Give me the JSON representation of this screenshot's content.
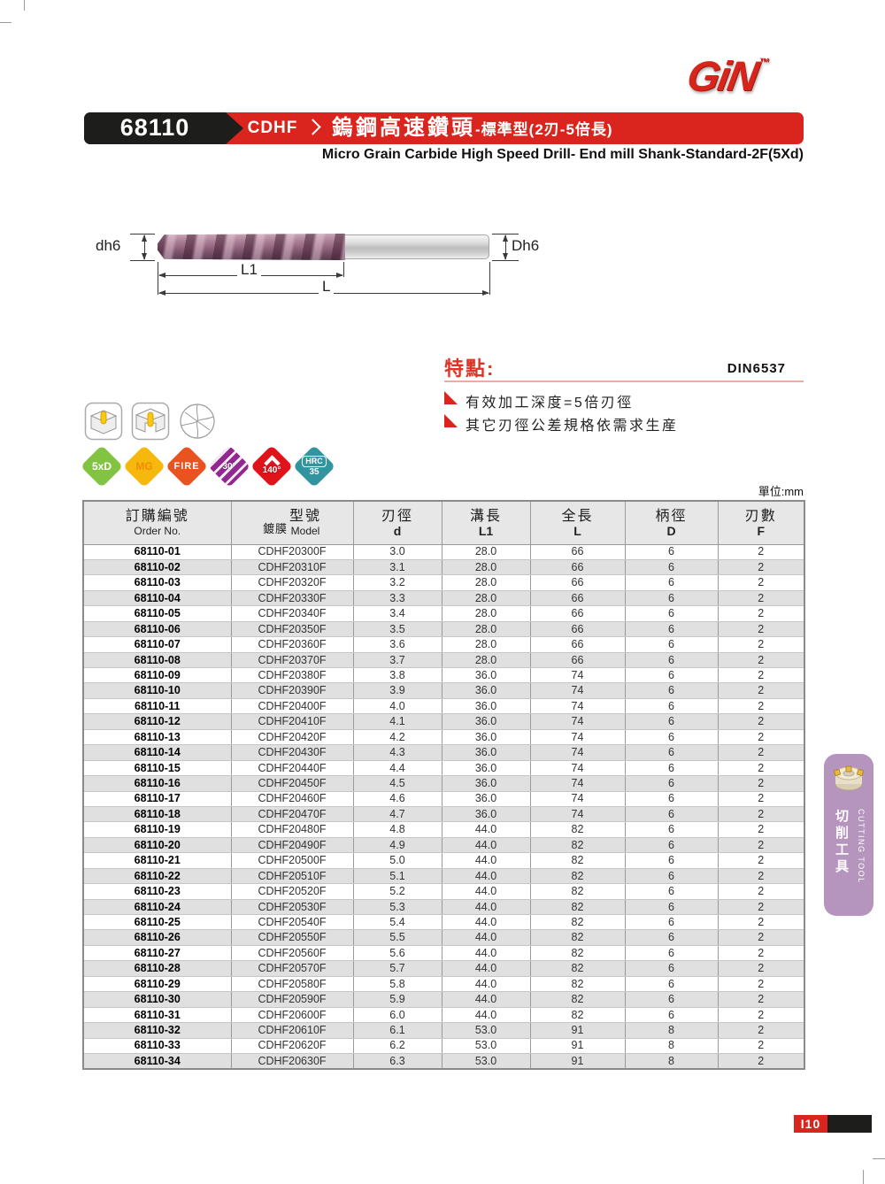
{
  "logo": {
    "text": "GiN",
    "mark": "™"
  },
  "header": {
    "code": "68110",
    "series": "CDHF",
    "title_zh_main": "鎢鋼高速鑽頭",
    "title_zh_sub": "-標準型(2刃-5倍長)",
    "subtitle_en": "Micro Grain Carbide High Speed Drill- End mill Shank-Standard-2F(5Xd)"
  },
  "diagram": {
    "label_left": "dh6",
    "label_right": "Dh6",
    "label_flute_length": "L1",
    "label_overall_length": "L"
  },
  "features": {
    "title": "特點:",
    "standard": "DIN6537",
    "items": [
      "有效加工深度=5倍刃徑",
      "其它刃徑公差規格依需求生産"
    ]
  },
  "badges": [
    {
      "label": "5xD",
      "color": "#82c341",
      "text_color": "#ffffff"
    },
    {
      "label": "MG",
      "color": "#f7b80e",
      "text_color": "#ef8e00"
    },
    {
      "label": "FIRE",
      "color": "#e8531f",
      "text_color": "#ffffff"
    },
    {
      "label": "30°",
      "color": "#92278f",
      "text_color": "#ffffff"
    },
    {
      "label": "140°",
      "color": "#e0131b",
      "text_color": "#ffffff"
    },
    {
      "label": "HRC",
      "sub": "35",
      "color": "#31949e",
      "text_color": "#ffffff"
    }
  ],
  "unit_note": "單位:mm",
  "table": {
    "headers": [
      {
        "zh": "訂購編號",
        "en": "Order No."
      },
      {
        "zh_prefix": "鍍膜",
        "zh": "型號",
        "en": "Model"
      },
      {
        "zh": "刃徑",
        "en": "d"
      },
      {
        "zh": "溝長",
        "en": "L1"
      },
      {
        "zh": "全長",
        "en": "L"
      },
      {
        "zh": "柄徑",
        "en": "D"
      },
      {
        "zh": "刃數",
        "en": "F"
      }
    ],
    "rows": [
      [
        "68110-01",
        "CDHF20300F",
        "3.0",
        "28.0",
        "66",
        "6",
        "2"
      ],
      [
        "68110-02",
        "CDHF20310F",
        "3.1",
        "28.0",
        "66",
        "6",
        "2"
      ],
      [
        "68110-03",
        "CDHF20320F",
        "3.2",
        "28.0",
        "66",
        "6",
        "2"
      ],
      [
        "68110-04",
        "CDHF20330F",
        "3.3",
        "28.0",
        "66",
        "6",
        "2"
      ],
      [
        "68110-05",
        "CDHF20340F",
        "3.4",
        "28.0",
        "66",
        "6",
        "2"
      ],
      [
        "68110-06",
        "CDHF20350F",
        "3.5",
        "28.0",
        "66",
        "6",
        "2"
      ],
      [
        "68110-07",
        "CDHF20360F",
        "3.6",
        "28.0",
        "66",
        "6",
        "2"
      ],
      [
        "68110-08",
        "CDHF20370F",
        "3.7",
        "28.0",
        "66",
        "6",
        "2"
      ],
      [
        "68110-09",
        "CDHF20380F",
        "3.8",
        "36.0",
        "74",
        "6",
        "2"
      ],
      [
        "68110-10",
        "CDHF20390F",
        "3.9",
        "36.0",
        "74",
        "6",
        "2"
      ],
      [
        "68110-11",
        "CDHF20400F",
        "4.0",
        "36.0",
        "74",
        "6",
        "2"
      ],
      [
        "68110-12",
        "CDHF20410F",
        "4.1",
        "36.0",
        "74",
        "6",
        "2"
      ],
      [
        "68110-13",
        "CDHF20420F",
        "4.2",
        "36.0",
        "74",
        "6",
        "2"
      ],
      [
        "68110-14",
        "CDHF20430F",
        "4.3",
        "36.0",
        "74",
        "6",
        "2"
      ],
      [
        "68110-15",
        "CDHF20440F",
        "4.4",
        "36.0",
        "74",
        "6",
        "2"
      ],
      [
        "68110-16",
        "CDHF20450F",
        "4.5",
        "36.0",
        "74",
        "6",
        "2"
      ],
      [
        "68110-17",
        "CDHF20460F",
        "4.6",
        "36.0",
        "74",
        "6",
        "2"
      ],
      [
        "68110-18",
        "CDHF20470F",
        "4.7",
        "36.0",
        "74",
        "6",
        "2"
      ],
      [
        "68110-19",
        "CDHF20480F",
        "4.8",
        "44.0",
        "82",
        "6",
        "2"
      ],
      [
        "68110-20",
        "CDHF20490F",
        "4.9",
        "44.0",
        "82",
        "6",
        "2"
      ],
      [
        "68110-21",
        "CDHF20500F",
        "5.0",
        "44.0",
        "82",
        "6",
        "2"
      ],
      [
        "68110-22",
        "CDHF20510F",
        "5.1",
        "44.0",
        "82",
        "6",
        "2"
      ],
      [
        "68110-23",
        "CDHF20520F",
        "5.2",
        "44.0",
        "82",
        "6",
        "2"
      ],
      [
        "68110-24",
        "CDHF20530F",
        "5.3",
        "44.0",
        "82",
        "6",
        "2"
      ],
      [
        "68110-25",
        "CDHF20540F",
        "5.4",
        "44.0",
        "82",
        "6",
        "2"
      ],
      [
        "68110-26",
        "CDHF20550F",
        "5.5",
        "44.0",
        "82",
        "6",
        "2"
      ],
      [
        "68110-27",
        "CDHF20560F",
        "5.6",
        "44.0",
        "82",
        "6",
        "2"
      ],
      [
        "68110-28",
        "CDHF20570F",
        "5.7",
        "44.0",
        "82",
        "6",
        "2"
      ],
      [
        "68110-29",
        "CDHF20580F",
        "5.8",
        "44.0",
        "82",
        "6",
        "2"
      ],
      [
        "68110-30",
        "CDHF20590F",
        "5.9",
        "44.0",
        "82",
        "6",
        "2"
      ],
      [
        "68110-31",
        "CDHF20600F",
        "6.0",
        "44.0",
        "82",
        "6",
        "2"
      ],
      [
        "68110-32",
        "CDHF20610F",
        "6.1",
        "53.0",
        "91",
        "8",
        "2"
      ],
      [
        "68110-33",
        "CDHF20620F",
        "6.2",
        "53.0",
        "91",
        "8",
        "2"
      ],
      [
        "68110-34",
        "CDHF20630F",
        "6.3",
        "53.0",
        "91",
        "8",
        "2"
      ]
    ]
  },
  "sidebar": {
    "en": "CUTTING TOOL",
    "zh": "切削工具"
  },
  "page_number": "I10"
}
